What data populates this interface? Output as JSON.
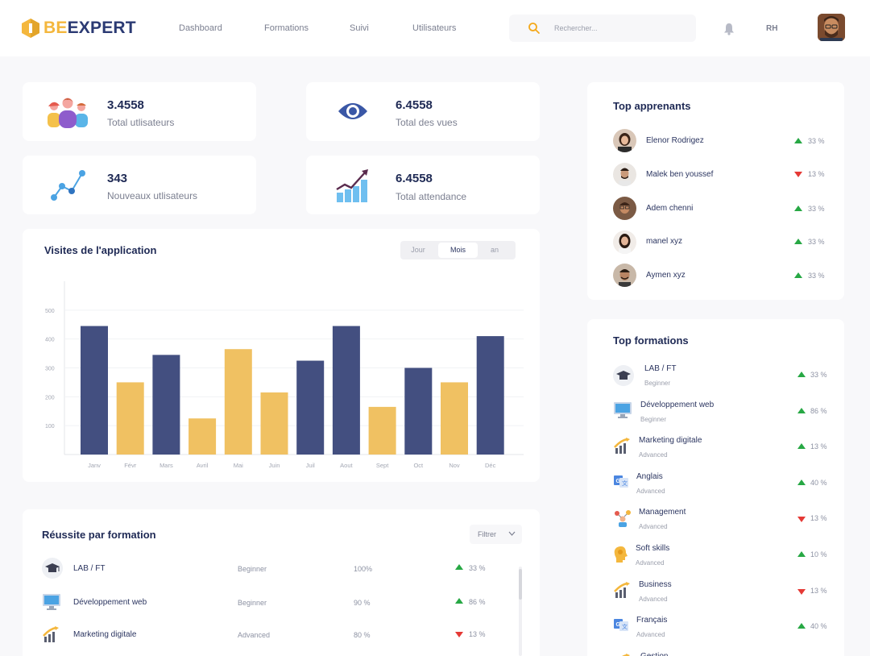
{
  "brand": {
    "part1": "BE",
    "part2": "EXPERT"
  },
  "nav": [
    "Dashboard",
    "Formations",
    "Suivi",
    "Utilisateurs"
  ],
  "search": {
    "placeholder": "Rechercher..."
  },
  "user_role": "RH",
  "stats": [
    {
      "value": "3.4558",
      "label": "Total utlisateurs"
    },
    {
      "value": "6.4558",
      "label": "Total des vues"
    },
    {
      "value": "343",
      "label": "Nouveaux utlisateurs"
    },
    {
      "value": "6.4558",
      "label": "Total attendance"
    }
  ],
  "visits": {
    "title": "Visites de l'application",
    "periods": [
      "Jour",
      "Mois",
      "an"
    ],
    "active_period": "Mois"
  },
  "chart_data": {
    "type": "bar",
    "categories": [
      "Janv",
      "Févr",
      "Mars",
      "Avril",
      "Mai",
      "Juin",
      "Juil",
      "Aout",
      "Sept",
      "Oct",
      "Nov",
      "Déc"
    ],
    "values": [
      445,
      250,
      345,
      125,
      365,
      215,
      325,
      445,
      165,
      300,
      250,
      410
    ],
    "colors": [
      "#434f80",
      "#f0c162",
      "#434f80",
      "#f0c162",
      "#f0c162",
      "#f0c162",
      "#434f80",
      "#434f80",
      "#f0c162",
      "#434f80",
      "#f0c162",
      "#434f80"
    ],
    "yticks": [
      100,
      200,
      300,
      400,
      500
    ],
    "ylim": [
      0,
      600
    ],
    "grid": true
  },
  "reussite": {
    "title": "Réussite par formation",
    "filter_label": "Filtrer",
    "rows": [
      {
        "name": "LAB / FT",
        "level": "Beginner",
        "rate": "100%",
        "trend": "up",
        "pct": "33 %"
      },
      {
        "name": "Développement web",
        "level": "Beginner",
        "rate": "90 %",
        "trend": "up",
        "pct": "86 %"
      },
      {
        "name": "Marketing digitale",
        "level": "Advanced",
        "rate": "80 %",
        "trend": "down",
        "pct": "13 %"
      }
    ]
  },
  "top_apprenants": {
    "title": "Top apprenants",
    "items": [
      {
        "name": "Elenor Rodrigez",
        "trend": "up",
        "pct": "33 %"
      },
      {
        "name": "Malek ben youssef",
        "trend": "down",
        "pct": "13 %"
      },
      {
        "name": "Adem chenni",
        "trend": "up",
        "pct": "33 %"
      },
      {
        "name": "manel xyz",
        "trend": "up",
        "pct": "33 %"
      },
      {
        "name": "Aymen xyz",
        "trend": "up",
        "pct": "33 %"
      }
    ]
  },
  "top_formations": {
    "title": "Top formations",
    "items": [
      {
        "name": "LAB / FT",
        "level": "Beginner",
        "trend": "up",
        "pct": "33 %",
        "icon": "graduation-cap-icon"
      },
      {
        "name": "Développement web",
        "level": "Beginner",
        "trend": "up",
        "pct": "86 %",
        "icon": "monitor-icon"
      },
      {
        "name": "Marketing digitale",
        "level": "Advanced",
        "trend": "up",
        "pct": "13 %",
        "icon": "growth-chart-icon"
      },
      {
        "name": "Anglais",
        "level": "Advanced",
        "trend": "up",
        "pct": "40 %",
        "icon": "translate-icon"
      },
      {
        "name": "Management",
        "level": "Advanced",
        "trend": "down",
        "pct": "13 %",
        "icon": "management-icon"
      },
      {
        "name": "Soft skills",
        "level": "Advanced",
        "trend": "up",
        "pct": "10 %",
        "icon": "brain-icon"
      },
      {
        "name": "Business",
        "level": "Advanced",
        "trend": "down",
        "pct": "13 %",
        "icon": "growth-chart-icon"
      },
      {
        "name": "Français",
        "level": "Advanced",
        "trend": "up",
        "pct": "40 %",
        "icon": "translate-icon"
      },
      {
        "name": "Gestion",
        "level": "",
        "trend": "",
        "pct": "",
        "icon": "growth-chart-icon"
      }
    ]
  }
}
